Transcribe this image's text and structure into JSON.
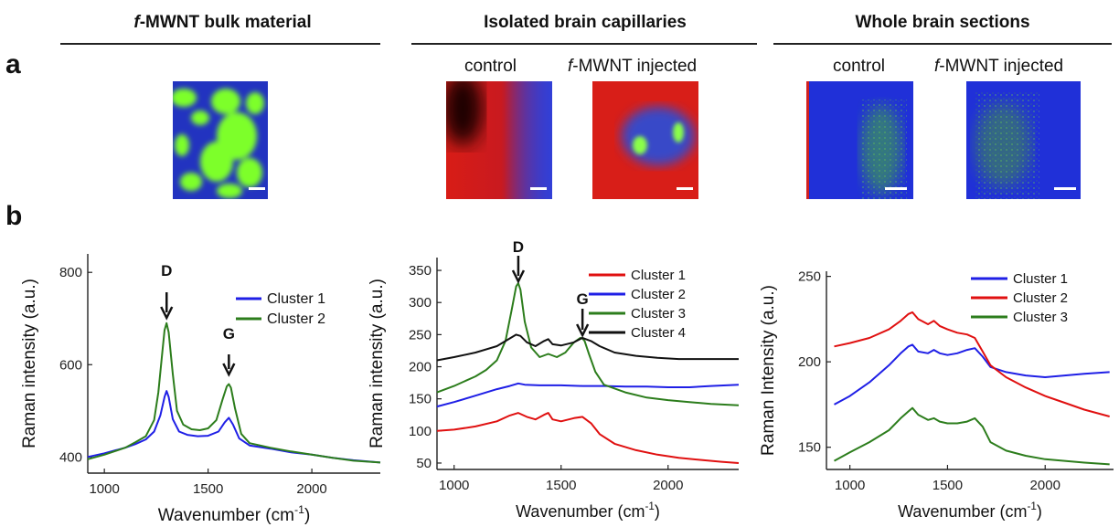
{
  "panel_labels": {
    "a": "a",
    "b": "b"
  },
  "headers": [
    "f-MWNT bulk material",
    "Isolated brain capillaries",
    "Whole brain sections"
  ],
  "header_italic_prefix": "f",
  "header_rest": [
    "-MWNT bulk material",
    "Isolated brain capillaries",
    "Whole brain sections"
  ],
  "subtitles": {
    "capillaries_control": "control",
    "capillaries_injected_italic": "f",
    "capillaries_injected_rest": "-MWNT injected",
    "sections_control": "control",
    "sections_injected_italic": "f",
    "sections_injected_rest": "-MWNT injected"
  },
  "colors": {
    "blue": "#1f1fe6",
    "red": "#e01010",
    "green": "#2c7d1c",
    "black": "#111111",
    "map_green": "#7dff2a",
    "map_blue": "#2030c8",
    "map_red": "#e0221a"
  },
  "chart_data": [
    {
      "type": "line",
      "xlabel": "Wavenumber (cm-1)",
      "ylabel": "Raman intensity (a.u.)",
      "xlim": [
        920,
        2330
      ],
      "ylim": [
        365,
        840
      ],
      "xticks": [
        1000,
        1500,
        2000
      ],
      "yticks": [
        400,
        600,
        800
      ],
      "legend_position": "top-right",
      "annotations": [
        {
          "text": "D",
          "x": 1300
        },
        {
          "text": "G",
          "x": 1600
        }
      ],
      "series": [
        {
          "name": "Cluster 1",
          "color": "#1f1fe6",
          "x": [
            920,
            1000,
            1100,
            1150,
            1200,
            1240,
            1270,
            1290,
            1300,
            1310,
            1330,
            1360,
            1400,
            1450,
            1500,
            1550,
            1580,
            1600,
            1620,
            1650,
            1700,
            1800,
            1900,
            2000,
            2100,
            2200,
            2330
          ],
          "values": [
            400,
            408,
            420,
            428,
            438,
            455,
            490,
            530,
            543,
            530,
            482,
            455,
            448,
            445,
            446,
            455,
            475,
            485,
            470,
            440,
            425,
            418,
            410,
            405,
            398,
            393,
            388
          ]
        },
        {
          "name": "Cluster 2",
          "color": "#2c7d1c",
          "x": [
            920,
            1000,
            1100,
            1150,
            1200,
            1240,
            1260,
            1280,
            1290,
            1300,
            1310,
            1330,
            1350,
            1380,
            1420,
            1460,
            1500,
            1540,
            1570,
            1590,
            1600,
            1610,
            1630,
            1660,
            1700,
            1800,
            1900,
            2000,
            2100,
            2200,
            2330
          ],
          "values": [
            395,
            405,
            420,
            432,
            445,
            480,
            540,
            630,
            675,
            690,
            670,
            580,
            500,
            470,
            460,
            458,
            462,
            480,
            525,
            553,
            558,
            550,
            505,
            450,
            430,
            420,
            412,
            405,
            398,
            392,
            388
          ]
        }
      ]
    },
    {
      "type": "line",
      "xlabel": "Wavenumber (cm-1)",
      "ylabel": "Raman intensity (a.u.)",
      "xlim": [
        920,
        2330
      ],
      "ylim": [
        40,
        370
      ],
      "xticks": [
        1000,
        1500,
        2000
      ],
      "yticks": [
        50,
        100,
        150,
        200,
        250,
        300,
        350
      ],
      "legend_position": "top-right",
      "annotations": [
        {
          "text": "D",
          "x": 1300
        },
        {
          "text": "G",
          "x": 1600
        }
      ],
      "series": [
        {
          "name": "Cluster 1",
          "color": "#e01010",
          "x": [
            920,
            1000,
            1100,
            1200,
            1260,
            1300,
            1340,
            1380,
            1420,
            1440,
            1460,
            1500,
            1560,
            1600,
            1640,
            1680,
            1750,
            1850,
            1950,
            2050,
            2150,
            2250,
            2330
          ],
          "values": [
            100,
            102,
            107,
            115,
            124,
            128,
            122,
            118,
            125,
            128,
            118,
            115,
            120,
            122,
            112,
            95,
            80,
            70,
            63,
            58,
            55,
            52,
            50
          ]
        },
        {
          "name": "Cluster 2",
          "color": "#1f1fe6",
          "x": [
            920,
            1000,
            1100,
            1200,
            1260,
            1300,
            1330,
            1400,
            1500,
            1600,
            1700,
            1800,
            1900,
            2000,
            2100,
            2200,
            2330
          ],
          "values": [
            138,
            145,
            155,
            165,
            170,
            174,
            172,
            171,
            171,
            170,
            170,
            169,
            169,
            168,
            168,
            170,
            172
          ]
        },
        {
          "name": "Cluster 3",
          "color": "#2c7d1c",
          "x": [
            920,
            1000,
            1100,
            1150,
            1200,
            1240,
            1270,
            1290,
            1300,
            1310,
            1330,
            1360,
            1400,
            1440,
            1480,
            1520,
            1560,
            1590,
            1600,
            1610,
            1630,
            1660,
            1700,
            1800,
            1900,
            2000,
            2100,
            2200,
            2330
          ],
          "values": [
            160,
            170,
            185,
            195,
            210,
            240,
            290,
            325,
            330,
            320,
            270,
            230,
            215,
            220,
            215,
            222,
            238,
            245,
            244,
            240,
            220,
            192,
            172,
            160,
            152,
            148,
            145,
            142,
            140
          ]
        },
        {
          "name": "Cluster 4",
          "color": "#111111",
          "x": [
            920,
            1000,
            1100,
            1200,
            1250,
            1290,
            1310,
            1340,
            1380,
            1420,
            1440,
            1460,
            1500,
            1560,
            1600,
            1640,
            1680,
            1750,
            1850,
            1950,
            2050,
            2150,
            2250,
            2330
          ],
          "values": [
            210,
            215,
            222,
            232,
            242,
            250,
            248,
            238,
            232,
            240,
            243,
            235,
            233,
            238,
            245,
            240,
            232,
            222,
            217,
            214,
            212,
            212,
            212,
            212
          ]
        }
      ]
    },
    {
      "type": "line",
      "xlabel": "Wavenumber (cm-1)",
      "ylabel": "Raman Intensity (a.u.)",
      "xlim": [
        880,
        2350
      ],
      "ylim": [
        137,
        253
      ],
      "xticks": [
        1000,
        1500,
        2000
      ],
      "yticks": [
        150,
        200,
        250
      ],
      "legend_position": "top-right",
      "series": [
        {
          "name": "Cluster 1",
          "color": "#1f1fe6",
          "x": [
            920,
            1000,
            1100,
            1200,
            1260,
            1300,
            1320,
            1350,
            1400,
            1430,
            1460,
            1500,
            1550,
            1600,
            1640,
            1680,
            1720,
            1800,
            1900,
            2000,
            2100,
            2200,
            2330
          ],
          "values": [
            175,
            180,
            188,
            198,
            205,
            209,
            210,
            206,
            205,
            207,
            205,
            204,
            205,
            207,
            208,
            203,
            197,
            194,
            192,
            191,
            192,
            193,
            194
          ]
        },
        {
          "name": "Cluster 2",
          "color": "#e01010",
          "x": [
            920,
            1000,
            1100,
            1200,
            1260,
            1300,
            1320,
            1350,
            1400,
            1430,
            1460,
            1500,
            1550,
            1600,
            1640,
            1680,
            1720,
            1800,
            1900,
            2000,
            2100,
            2200,
            2330
          ],
          "values": [
            209,
            211,
            214,
            219,
            224,
            228,
            229,
            225,
            222,
            224,
            221,
            219,
            217,
            216,
            214,
            206,
            198,
            191,
            185,
            180,
            176,
            172,
            168
          ]
        },
        {
          "name": "Cluster 3",
          "color": "#2c7d1c",
          "x": [
            920,
            1000,
            1100,
            1200,
            1260,
            1300,
            1320,
            1350,
            1400,
            1430,
            1460,
            1500,
            1550,
            1600,
            1640,
            1680,
            1720,
            1800,
            1900,
            2000,
            2100,
            2200,
            2330
          ],
          "values": [
            142,
            147,
            153,
            160,
            167,
            171,
            173,
            169,
            166,
            167,
            165,
            164,
            164,
            165,
            167,
            162,
            153,
            148,
            145,
            143,
            142,
            141,
            140
          ]
        }
      ]
    }
  ]
}
